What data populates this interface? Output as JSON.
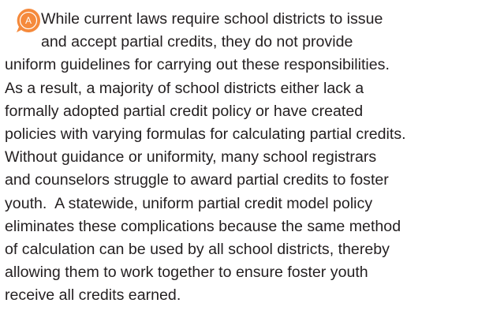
{
  "icon": {
    "label": "A"
  },
  "lines": [
    "While current laws require school districts to issue",
    "and accept partial credits, they do not provide",
    "uniform guidelines for carrying out these responsibilities.",
    "As a result, a majority of school districts either lack a",
    "formally adopted partial credit policy or have created",
    "policies with varying formulas for calculating partial credits.",
    "Without guidance or uniformity, many school registrars",
    "and counselors struggle to award partial credits to foster",
    "youth.  A statewide, uniform partial credit model policy",
    "eliminates these complications because the same method",
    "of calculation can be used by all school districts, thereby",
    "allowing them to work together to ensure foster youth",
    "receive all credits earned."
  ]
}
